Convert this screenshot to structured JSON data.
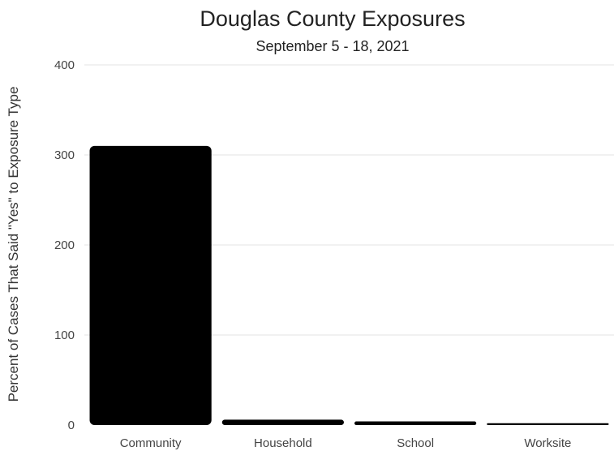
{
  "chart_data": {
    "type": "bar",
    "title": "Douglas County Exposures",
    "subtitle": "September 5 - 18, 2021",
    "xlabel": "",
    "ylabel": "Percent of Cases That Said \"Yes\" to Exposure Type",
    "categories": [
      "Community",
      "Household",
      "School",
      "Worksite"
    ],
    "values": [
      310,
      6,
      4,
      2
    ],
    "ylim": [
      0,
      400
    ],
    "yticks": [
      0,
      100,
      200,
      300,
      400
    ],
    "grid": true,
    "legend": "none",
    "bar_color": "#000000"
  }
}
